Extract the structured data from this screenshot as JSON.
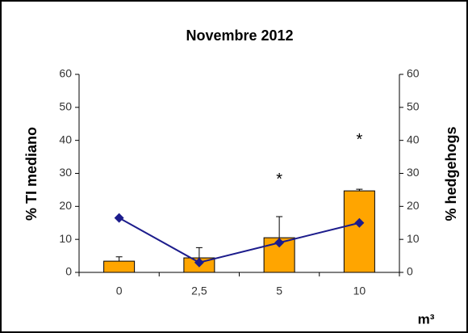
{
  "chart_data": {
    "type": "bar-line",
    "title": "Novembre 2012",
    "ylabel": "% TI mediano",
    "y2label": "% hedgehogs",
    "xlabel": "m³",
    "categories": [
      "0",
      "2,5",
      "5",
      "10"
    ],
    "series": [
      {
        "type": "bar",
        "color": "#ffa500",
        "values": [
          3.4,
          4.4,
          10.5,
          24.7
        ],
        "errors": [
          1.3,
          3.1,
          6.4,
          0.5
        ]
      },
      {
        "type": "line",
        "color": "#1c1c8c",
        "axis": "y2",
        "values": [
          16.5,
          3,
          9,
          15
        ]
      }
    ],
    "annotations": [
      {
        "text": "*",
        "x": "5",
        "y": 29
      },
      {
        "text": "*",
        "x": "10",
        "y": 41
      }
    ],
    "ylim": [
      0,
      60
    ],
    "yticks": [
      0,
      10,
      20,
      30,
      40,
      50,
      60
    ],
    "y2lim": [
      0,
      60
    ],
    "y2ticks": [
      0,
      10,
      20,
      30,
      40,
      50,
      60
    ],
    "grid": false
  }
}
